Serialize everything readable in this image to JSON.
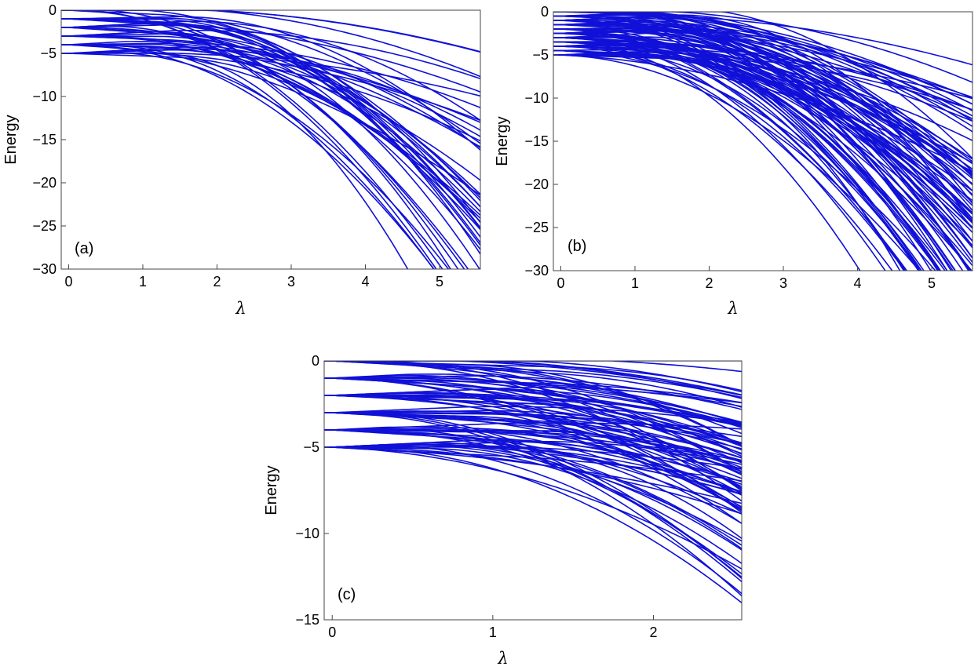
{
  "colors": {
    "curve": "#1010d8",
    "axes": "#444444",
    "text": "#000000"
  },
  "chart_data": [
    {
      "panel_label": "(a)",
      "type": "line",
      "xlabel": "λ",
      "ylabel": "Energy",
      "xlim": [
        -0.1,
        5.55
      ],
      "ylim": [
        -30,
        0
      ],
      "xticks": [
        0,
        1,
        2,
        3,
        4,
        5
      ],
      "yticks": [
        0,
        -5,
        -10,
        -15,
        -20,
        -25,
        -30
      ],
      "xtick_labels": [
        "0",
        "1",
        "2",
        "3",
        "4",
        "5"
      ],
      "ytick_labels": [
        "0",
        "−5",
        "−10",
        "−15",
        "−20",
        "−25",
        "−30"
      ],
      "grid": false,
      "series_spec": {
        "initial_levels": [
          0,
          -1,
          -2,
          -3,
          -4,
          -5
        ],
        "curves_per_level": 8,
        "ground_state_start": -5,
        "ground_state_knee_x": 1.2,
        "curve_count_approx": 48
      }
    },
    {
      "panel_label": "(b)",
      "type": "line",
      "xlabel": "λ",
      "ylabel": "Energy",
      "xlim": [
        -0.1,
        5.55
      ],
      "ylim": [
        -30,
        0
      ],
      "xticks": [
        0,
        1,
        2,
        3,
        4,
        5
      ],
      "yticks": [
        0,
        -5,
        -10,
        -15,
        -20,
        -25,
        -30
      ],
      "xtick_labels": [
        "0",
        "1",
        "2",
        "3",
        "4",
        "5"
      ],
      "ytick_labels": [
        "0",
        "−5",
        "−10",
        "−15",
        "−20",
        "−25",
        "−30"
      ],
      "grid": false,
      "series_spec": {
        "initial_levels": [
          0,
          -0.5,
          -1,
          -1.5,
          -2,
          -2.5,
          -3,
          -3.5,
          -4,
          -4.5,
          -5
        ],
        "curves_per_level": 9,
        "ground_state_start": -5,
        "ground_state_knee_x": 1.2,
        "curve_count_approx": 99
      }
    },
    {
      "panel_label": "(c)",
      "type": "line",
      "xlabel": "λ",
      "ylabel": "Energy",
      "xlim": [
        -0.05,
        2.55
      ],
      "ylim": [
        -15,
        0
      ],
      "xticks": [
        0,
        1,
        2
      ],
      "yticks": [
        0,
        -5,
        -10,
        -15
      ],
      "xtick_labels": [
        "0",
        "1",
        "2"
      ],
      "ytick_labels": [
        "0",
        "−5",
        "−10",
        "−15"
      ],
      "grid": false,
      "series_spec": {
        "initial_levels": [
          0,
          -1,
          -2,
          -3,
          -4,
          -5
        ],
        "curves_per_level": 16,
        "ground_state_start": -5,
        "ground_state_knee_x": 1.0,
        "curve_count_approx": 96
      }
    }
  ]
}
